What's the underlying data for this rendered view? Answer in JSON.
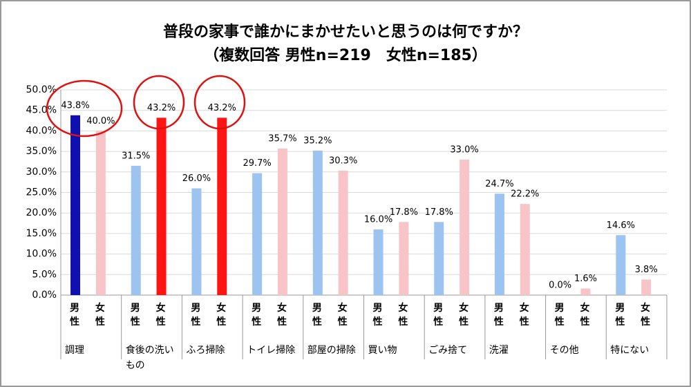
{
  "chart_data": {
    "type": "bar",
    "title": "普段の家事で誰かにまかせたいと思うのは何ですか？",
    "subtitle": "（複数回答 男性n=219　女性n=185）",
    "categories": [
      "調理",
      "食後の洗いもの",
      "ふろ掃除",
      "トイレ掃除",
      "部屋の掃除",
      "買い物",
      "ごみ捨て",
      "洗濯",
      "その他",
      "特にない"
    ],
    "series": [
      {
        "name": "男性",
        "color": "#9dc3f0",
        "colors": [
          "#1010b0",
          "#9dc3f0",
          "#9dc3f0",
          "#9dc3f0",
          "#9dc3f0",
          "#9dc3f0",
          "#9dc3f0",
          "#9dc3f0",
          "#9dc3f0",
          "#9dc3f0"
        ],
        "values": [
          43.8,
          31.5,
          26.0,
          29.7,
          35.2,
          16.0,
          17.8,
          24.7,
          0.0,
          14.6
        ],
        "value_labels": [
          "43.8%",
          "31.5%",
          "26.0%",
          "29.7%",
          "35.2%",
          "16.0%",
          "17.8%",
          "24.7%",
          "0.0%",
          "14.6%"
        ]
      },
      {
        "name": "女性",
        "color": "#f9c4c8",
        "colors": [
          "#f9c4c8",
          "#ff1414",
          "#ff1414",
          "#f9c4c8",
          "#f9c4c8",
          "#f9c4c8",
          "#f9c4c8",
          "#f9c4c8",
          "#f9c4c8",
          "#f9c4c8"
        ],
        "values": [
          40.0,
          43.2,
          43.2,
          35.7,
          30.3,
          17.8,
          33.0,
          22.2,
          1.6,
          3.8
        ],
        "value_labels": [
          "40.0%",
          "43.2%",
          "43.2%",
          "35.7%",
          "30.3%",
          "17.8%",
          "33.0%",
          "22.2%",
          "1.6%",
          "3.8%"
        ]
      }
    ],
    "ylim": [
      0,
      50
    ],
    "yticks": [
      {
        "value": 0,
        "label": "0.0%"
      },
      {
        "value": 5,
        "label": "5.0%"
      },
      {
        "value": 10,
        "label": "10.0%"
      },
      {
        "value": 15,
        "label": "15.0%"
      },
      {
        "value": 20,
        "label": "20.0%"
      },
      {
        "value": 25,
        "label": "25.0%"
      },
      {
        "value": 30,
        "label": "30.0%"
      },
      {
        "value": 35,
        "label": "35.0%"
      },
      {
        "value": 40,
        "label": "40.0%"
      },
      {
        "value": 45,
        "label": "45.0%"
      },
      {
        "value": 50,
        "label": "50.0%"
      }
    ],
    "grid": true
  }
}
